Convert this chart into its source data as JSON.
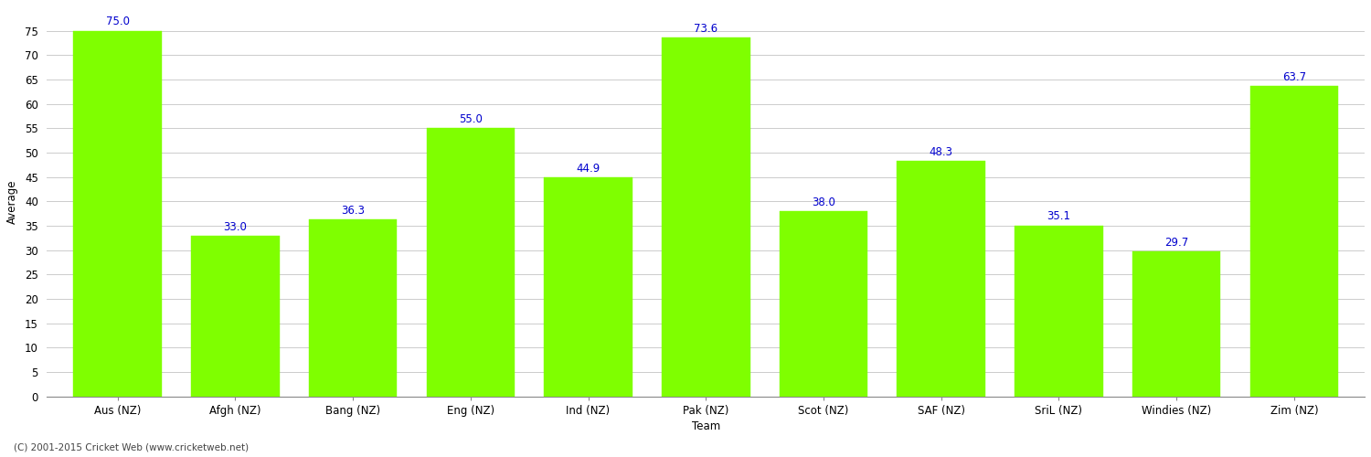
{
  "show_title": false,
  "categories": [
    "Aus (NZ)",
    "Afgh (NZ)",
    "Bang (NZ)",
    "Eng (NZ)",
    "Ind (NZ)",
    "Pak (NZ)",
    "Scot (NZ)",
    "SAF (NZ)",
    "SriL (NZ)",
    "Windies (NZ)",
    "Zim (NZ)"
  ],
  "values": [
    75.0,
    33.0,
    36.3,
    55.0,
    44.9,
    73.6,
    38.0,
    48.3,
    35.1,
    29.7,
    63.7
  ],
  "bar_color": "#7FFF00",
  "bar_edge_color": "#7FFF00",
  "value_color": "#0000CD",
  "ylabel": "Average",
  "xlabel": "Team",
  "ylim": [
    0,
    80
  ],
  "yticks": [
    0,
    5,
    10,
    15,
    20,
    25,
    30,
    35,
    40,
    45,
    50,
    55,
    60,
    65,
    70,
    75
  ],
  "grid_color": "#cccccc",
  "background_color": "#ffffff",
  "footer_text": "(C) 2001-2015 Cricket Web (www.cricketweb.net)",
  "value_fontsize": 8.5,
  "label_fontsize": 8.5,
  "ylabel_fontsize": 8.5,
  "bar_width": 0.75
}
